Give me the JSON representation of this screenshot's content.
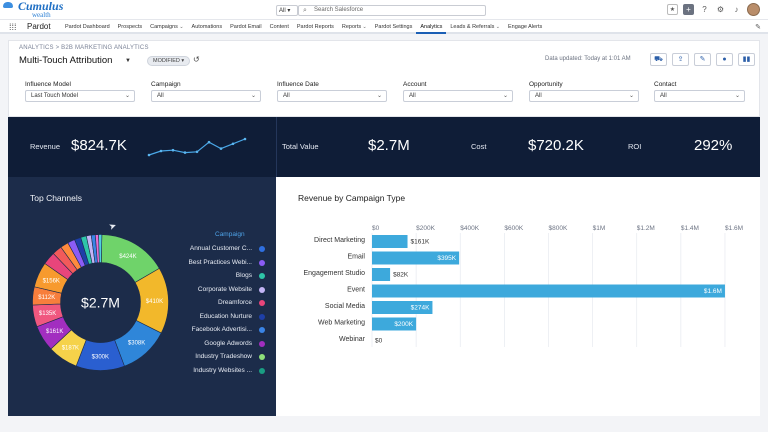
{
  "global_header": {
    "logo_primary": "Cumulus",
    "logo_secondary": "wealth",
    "search_scope": "All",
    "search_placeholder": "Search Salesforce"
  },
  "nav": {
    "app_name": "Pardot",
    "tabs": [
      {
        "label": "Pardot Dashboard",
        "caret": false
      },
      {
        "label": "Prospects",
        "caret": false
      },
      {
        "label": "Campaigns",
        "caret": true
      },
      {
        "label": "Automations",
        "caret": false
      },
      {
        "label": "Pardot Email",
        "caret": false
      },
      {
        "label": "Content",
        "caret": false
      },
      {
        "label": "Pardot Reports",
        "caret": false
      },
      {
        "label": "Reports",
        "caret": true
      },
      {
        "label": "Pardot Settings",
        "caret": false
      },
      {
        "label": "Analytics",
        "caret": false,
        "active": true
      },
      {
        "label": "Leads & Referrals",
        "caret": true
      },
      {
        "label": "Engage Alerts",
        "caret": false
      }
    ]
  },
  "page_header": {
    "breadcrumb": "ANALYTICS > B2B MARKETING ANALYTICS",
    "title": "Multi-Touch Attribution",
    "status_pill": "MODIFIED",
    "data_updated": "Data updated: Today at 1:01 AM"
  },
  "filters": [
    {
      "label": "Influence Model",
      "value": "Last Touch Model"
    },
    {
      "label": "Campaign",
      "value": "All"
    },
    {
      "label": "Influence Date",
      "value": "All"
    },
    {
      "label": "Account",
      "value": "All"
    },
    {
      "label": "Opportunity",
      "value": "All"
    },
    {
      "label": "Contact",
      "value": "All"
    }
  ],
  "kpis": {
    "revenue_label": "Revenue",
    "revenue_value": "$824.7K",
    "total_value_label": "Total Value",
    "total_value_value": "$2.7M",
    "cost_label": "Cost",
    "cost_value": "$720.2K",
    "roi_label": "ROI",
    "roi_value": "292%",
    "sparkline": [
      3,
      3.5,
      3.6,
      3.3,
      3.4,
      4.6,
      3.8,
      4.4,
      5.0
    ]
  },
  "top_channels": {
    "title": "Top Channels",
    "legend_title": "Campaign",
    "center_label": "$2.7M",
    "legend": [
      {
        "name": "Annual Customer C...",
        "color": "#2f6fe0"
      },
      {
        "name": "Best Practices Webi...",
        "color": "#8b5cf6"
      },
      {
        "name": "Blogs",
        "color": "#2ec5a9"
      },
      {
        "name": "Corporate Website",
        "color": "#c3b4f5"
      },
      {
        "name": "Dreamforce",
        "color": "#e8457b"
      },
      {
        "name": "Education Nurture",
        "color": "#1e3fa8"
      },
      {
        "name": "Facebook Advertisi...",
        "color": "#3a84e6"
      },
      {
        "name": "Google Adwords",
        "color": "#a22ec0"
      },
      {
        "name": "Industry Tradeshow",
        "color": "#8ee07a"
      },
      {
        "name": "Industry Websites ...",
        "color": "#1a9d83"
      }
    ],
    "donut": [
      {
        "label": "$424K",
        "value": 424,
        "color": "#6fd36a"
      },
      {
        "label": "$410K",
        "value": 410,
        "color": "#f2b82b"
      },
      {
        "label": "$308K",
        "value": 308,
        "color": "#2f86d9"
      },
      {
        "label": "$300K",
        "value": 300,
        "color": "#2a5fd0"
      },
      {
        "label": "$187K",
        "value": 187,
        "color": "#f5d24a"
      },
      {
        "label": "$161K",
        "value": 161,
        "color": "#a22ec0"
      },
      {
        "label": "$135K",
        "value": 135,
        "color": "#f0577f"
      },
      {
        "label": "$112K",
        "value": 112,
        "color": "#f77e3c"
      },
      {
        "label": "$156K",
        "value": 156,
        "color": "#f79a2e"
      },
      {
        "label": "",
        "value": 80,
        "color": "#e8457b"
      },
      {
        "label": "",
        "value": 60,
        "color": "#f25a5a"
      },
      {
        "label": "",
        "value": 50,
        "color": "#ff8a3d"
      },
      {
        "label": "",
        "value": 45,
        "color": "#8b5cf6"
      },
      {
        "label": "",
        "value": 40,
        "color": "#1e3fa8"
      },
      {
        "label": "",
        "value": 35,
        "color": "#2ec5a9"
      },
      {
        "label": "",
        "value": 30,
        "color": "#c3b4f5"
      },
      {
        "label": "",
        "value": 25,
        "color": "#3a84e6"
      },
      {
        "label": "",
        "value": 20,
        "color": "#e96fd4"
      },
      {
        "label": "",
        "value": 20,
        "color": "#4fd1e0"
      }
    ]
  },
  "revenue_by_campaign": {
    "title": "Revenue by Campaign Type"
  },
  "chart_data": {
    "type": "bar",
    "orientation": "horizontal",
    "title": "Revenue by Campaign Type",
    "categories": [
      "Direct Marketing",
      "Email",
      "Engagement Studio",
      "Event",
      "Social Media",
      "Web Marketing",
      "Webinar"
    ],
    "values": [
      161,
      395,
      82,
      1600,
      274,
      200,
      0
    ],
    "value_labels": [
      "$161K",
      "$395K",
      "$82K",
      "$1.6M",
      "$274K",
      "$200K",
      "$0"
    ],
    "ticks": [
      0,
      200,
      400,
      600,
      800,
      1000,
      1200,
      1400,
      1600
    ],
    "tick_labels": [
      "$0",
      "$200K",
      "$400K",
      "$600K",
      "$800K",
      "$1M",
      "$1.2M",
      "$1.4M",
      "$1.6M"
    ],
    "xlim": [
      0,
      1650
    ],
    "color": "#3da9dc",
    "grid": true
  }
}
